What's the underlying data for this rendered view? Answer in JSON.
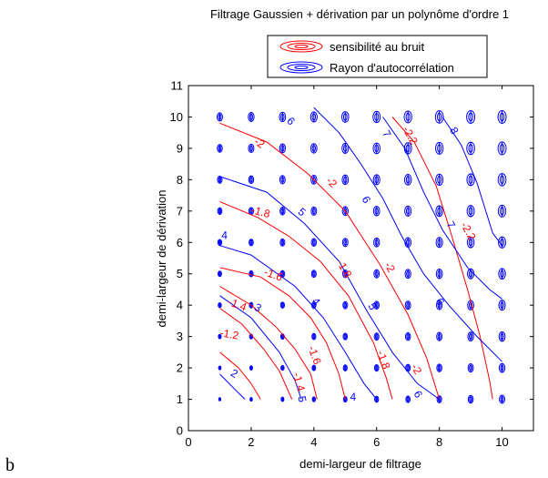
{
  "chart_data": {
    "type": "contour",
    "title": "Filtrage Gaussien + dérivation par un polynôme d'ordre 1",
    "xlabel": "demi-largeur de filtrage",
    "ylabel": "demi-largeur de dérivation",
    "xlim": [
      0,
      11
    ],
    "ylim": [
      0,
      11
    ],
    "xticks": [
      0,
      2,
      4,
      6,
      8,
      10
    ],
    "yticks": [
      0,
      1,
      2,
      3,
      4,
      5,
      6,
      7,
      8,
      9,
      10,
      11
    ],
    "grid": false,
    "legend_position": "top-right (outside plot)",
    "legend": [
      {
        "label": "sensibilité au bruit",
        "color": "#ff0000"
      },
      {
        "label": "Rayon d'autocorrélation",
        "color": "#0000ff"
      }
    ],
    "ellipse_grid": {
      "x": [
        1,
        2,
        3,
        4,
        5,
        6,
        7,
        8,
        9,
        10
      ],
      "y": [
        1,
        2,
        3,
        4,
        5,
        6,
        7,
        8,
        9,
        10
      ],
      "color": "#0000ff"
    },
    "red_contours": [
      {
        "level": "-1.2",
        "points": [
          [
            1,
            2.5
          ],
          [
            1.6,
            2.0
          ],
          [
            2.0,
            1.5
          ],
          [
            2.3,
            1.0
          ]
        ]
      },
      {
        "level": "-1.2",
        "points": [
          [
            1,
            3.9
          ],
          [
            1.7,
            3.4
          ],
          [
            2.4,
            2.6
          ],
          [
            2.9,
            1.9
          ],
          [
            3.3,
            1.0
          ]
        ]
      },
      {
        "level": "-1.4",
        "points": [
          [
            1,
            4.6
          ],
          [
            2.0,
            4.0
          ],
          [
            2.8,
            3.3
          ],
          [
            3.4,
            2.6
          ],
          [
            3.9,
            1.8
          ],
          [
            4.1,
            1.0
          ]
        ]
      },
      {
        "level": "-1.6",
        "points": [
          [
            1,
            5.2
          ],
          [
            2.3,
            4.9
          ],
          [
            3.2,
            4.3
          ],
          [
            3.9,
            3.6
          ],
          [
            4.4,
            2.8
          ],
          [
            4.8,
            1.8
          ],
          [
            5.0,
            1.0
          ]
        ]
      },
      {
        "level": "-1.8",
        "points": [
          [
            1,
            7.3
          ],
          [
            2.2,
            6.8
          ],
          [
            3.2,
            6.2
          ],
          [
            4.2,
            5.4
          ],
          [
            5.1,
            4.3
          ],
          [
            5.9,
            2.8
          ],
          [
            6.3,
            1.7
          ],
          [
            6.5,
            1.0
          ]
        ]
      },
      {
        "level": "-2",
        "points": [
          [
            1,
            9.8
          ],
          [
            2.5,
            9.2
          ],
          [
            3.8,
            8.2
          ],
          [
            5.0,
            7.0
          ],
          [
            6.1,
            5.3
          ],
          [
            7.0,
            3.7
          ],
          [
            7.6,
            2.3
          ],
          [
            8.0,
            1.0
          ]
        ]
      },
      {
        "level": "-2.2",
        "points": [
          [
            6.5,
            10.0
          ],
          [
            7.2,
            9.2
          ],
          [
            7.9,
            7.8
          ],
          [
            8.4,
            6.2
          ],
          [
            8.9,
            4.5
          ],
          [
            9.3,
            3.0
          ],
          [
            9.6,
            1.6
          ],
          [
            9.7,
            1.0
          ]
        ]
      }
    ],
    "blue_contours": [
      {
        "level": "2",
        "points": [
          [
            1,
            1.8
          ],
          [
            1.4,
            1.4
          ],
          [
            1.8,
            1.0
          ]
        ]
      },
      {
        "level": "3",
        "points": [
          [
            1,
            4.3
          ],
          [
            2.0,
            3.6
          ],
          [
            2.9,
            2.5
          ],
          [
            3.4,
            1.6
          ],
          [
            3.6,
            1.0
          ]
        ]
      },
      {
        "level": "4",
        "points": [
          [
            1,
            5.9
          ],
          [
            2.0,
            5.6
          ],
          [
            3.4,
            4.6
          ],
          [
            4.3,
            3.6
          ],
          [
            5.0,
            2.5
          ],
          [
            5.6,
            1.5
          ],
          [
            6.0,
            1.0
          ]
        ]
      },
      {
        "level": "5",
        "points": [
          [
            1,
            8.1
          ],
          [
            2.5,
            7.6
          ],
          [
            3.7,
            6.6
          ],
          [
            4.8,
            5.4
          ],
          [
            5.7,
            3.8
          ],
          [
            6.5,
            2.5
          ],
          [
            7.3,
            1.5
          ],
          [
            8.0,
            1.0
          ]
        ]
      },
      {
        "level": "6",
        "points": [
          [
            4.0,
            10.3
          ],
          [
            4.8,
            9.5
          ],
          [
            5.5,
            8.5
          ],
          [
            6.2,
            7.4
          ],
          [
            6.8,
            6.2
          ],
          [
            7.5,
            5.0
          ],
          [
            8.3,
            4.0
          ],
          [
            9.2,
            3.0
          ],
          [
            10.0,
            2.2
          ]
        ]
      },
      {
        "level": "7",
        "points": [
          [
            6.2,
            10.0
          ],
          [
            6.9,
            9.0
          ],
          [
            7.5,
            7.6
          ],
          [
            8.1,
            6.4
          ],
          [
            8.9,
            5.2
          ],
          [
            9.6,
            4.5
          ],
          [
            10.0,
            4.2
          ]
        ]
      },
      {
        "level": "8",
        "points": [
          [
            8.1,
            10.0
          ],
          [
            8.7,
            9.1
          ],
          [
            9.2,
            7.9
          ],
          [
            9.7,
            6.3
          ],
          [
            10.0,
            5.9
          ]
        ]
      }
    ],
    "contour_labels": [
      {
        "text": "-2",
        "x": 2.25,
        "y": 9.15,
        "color": "#ff0000",
        "angle": 35
      },
      {
        "text": "-2",
        "x": 4.55,
        "y": 7.9,
        "color": "#ff0000",
        "angle": 45
      },
      {
        "text": "-1.8",
        "x": 2.3,
        "y": 6.95,
        "color": "#ff0000",
        "angle": 15
      },
      {
        "text": "-1.6",
        "x": 2.7,
        "y": 4.95,
        "color": "#ff0000",
        "angle": 20
      },
      {
        "text": "-1.4",
        "x": 1.55,
        "y": 4.0,
        "color": "#ff0000",
        "angle": 20
      },
      {
        "text": "-1.2",
        "x": 1.3,
        "y": 3.05,
        "color": "#ff0000",
        "angle": 10
      },
      {
        "text": "-1.8",
        "x": 4.95,
        "y": 5.15,
        "color": "#ff0000",
        "angle": 60
      },
      {
        "text": "-1.6",
        "x": 4.0,
        "y": 2.4,
        "color": "#ff0000",
        "angle": 70
      },
      {
        "text": "-1.4",
        "x": 3.5,
        "y": 1.55,
        "color": "#ff0000",
        "angle": 75
      },
      {
        "text": "-1.8",
        "x": 6.2,
        "y": 2.25,
        "color": "#ff0000",
        "angle": 70
      },
      {
        "text": "-2",
        "x": 7.25,
        "y": 1.95,
        "color": "#ff0000",
        "angle": 60
      },
      {
        "text": "-2",
        "x": 6.4,
        "y": 5.2,
        "color": "#ff0000",
        "angle": 60
      },
      {
        "text": "-2.2",
        "x": 7.05,
        "y": 9.4,
        "color": "#ff0000",
        "angle": 60
      },
      {
        "text": "-2.2",
        "x": 8.9,
        "y": 6.35,
        "color": "#ff0000",
        "angle": 60
      },
      {
        "text": "5",
        "x": 3.6,
        "y": 6.95,
        "color": "#0000ff",
        "angle": 40
      },
      {
        "text": "4",
        "x": 1.15,
        "y": 6.2,
        "color": "#0000ff",
        "angle": 0
      },
      {
        "text": "4",
        "x": 4.05,
        "y": 4.1,
        "color": "#0000ff",
        "angle": 50
      },
      {
        "text": "3",
        "x": 2.2,
        "y": 3.9,
        "color": "#0000ff",
        "angle": 30
      },
      {
        "text": "2",
        "x": 1.45,
        "y": 1.8,
        "color": "#0000ff",
        "angle": 30
      },
      {
        "text": "5",
        "x": 3.6,
        "y": 1.0,
        "color": "#0000ff",
        "angle": 80
      },
      {
        "text": "5",
        "x": 5.85,
        "y": 3.95,
        "color": "#0000ff",
        "angle": 60
      },
      {
        "text": "6",
        "x": 3.25,
        "y": 9.85,
        "color": "#0000ff",
        "angle": 45
      },
      {
        "text": "6",
        "x": 5.65,
        "y": 7.35,
        "color": "#0000ff",
        "angle": 60
      },
      {
        "text": "6",
        "x": 8.0,
        "y": 4.1,
        "color": "#0000ff",
        "angle": 60
      },
      {
        "text": "6",
        "x": 7.3,
        "y": 1.15,
        "color": "#0000ff",
        "angle": 60
      },
      {
        "text": "7",
        "x": 6.3,
        "y": 9.45,
        "color": "#0000ff",
        "angle": 60
      },
      {
        "text": "7",
        "x": 8.35,
        "y": 6.55,
        "color": "#0000ff",
        "angle": 60
      },
      {
        "text": "8",
        "x": 8.45,
        "y": 9.55,
        "color": "#0000ff",
        "angle": 60
      },
      {
        "text": "4",
        "x": 5.25,
        "y": 1.05,
        "color": "#0000ff",
        "angle": 0
      }
    ]
  },
  "corner_label": "b"
}
